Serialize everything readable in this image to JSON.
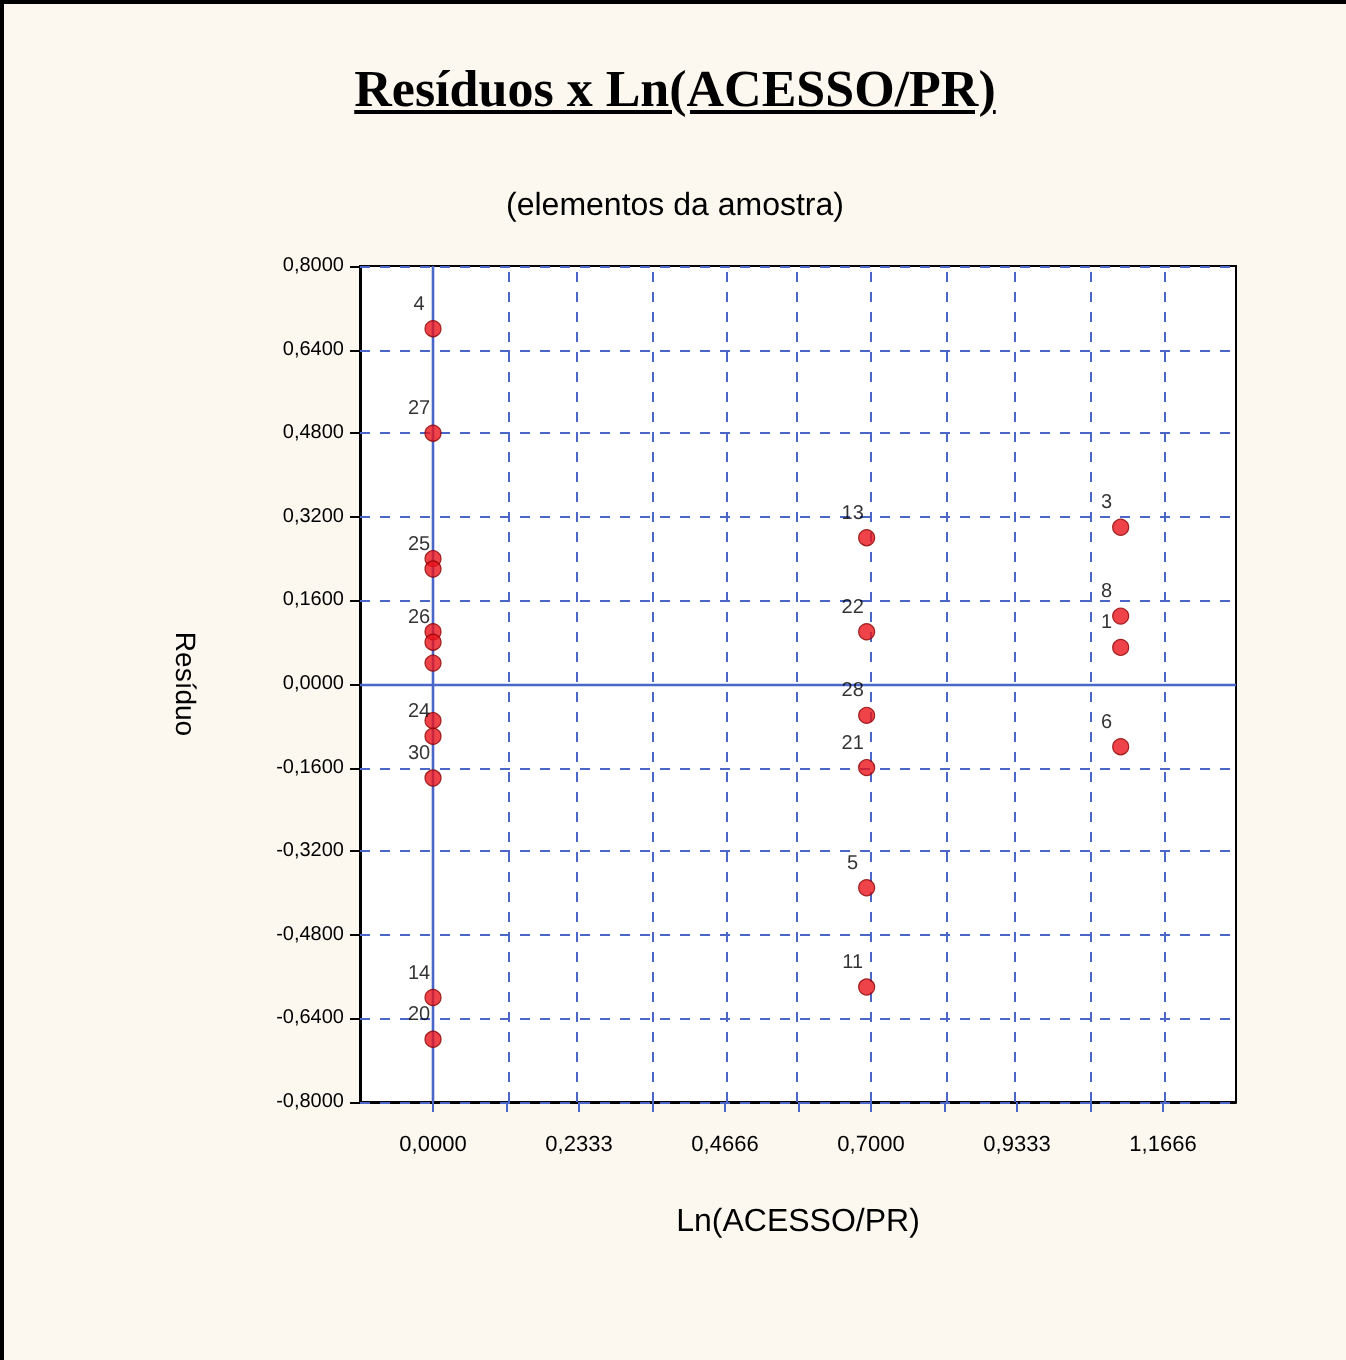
{
  "chart_data": {
    "type": "scatter",
    "title": "Resíduos x Ln(ACESSO/PR)",
    "subtitle": "(elementos da amostra)",
    "xlabel": "Ln(ACESSO/PR)",
    "ylabel": "Resíduo",
    "x": [
      0,
      0,
      0,
      0,
      0,
      0,
      0,
      0,
      0,
      0,
      0,
      0,
      0.693,
      0.693,
      0.693,
      0.693,
      0.693,
      0.693,
      1.099,
      1.099,
      1.099,
      1.099
    ],
    "values": [
      0.68,
      0.48,
      0.24,
      0.22,
      0.1,
      0.08,
      0.04,
      -0.07,
      -0.1,
      -0.18,
      -0.6,
      -0.68,
      0.28,
      0.1,
      -0.06,
      -0.16,
      -0.39,
      -0.58,
      0.3,
      0.13,
      0.07,
      -0.12
    ],
    "color": "#e8141c",
    "marker": "circle",
    "grid": true,
    "xlim": [
      -0.1167,
      1.2833
    ],
    "xticks": [
      {
        "value": 0,
        "label": "0,0000"
      },
      {
        "value": 0.1167,
        "label": null
      },
      {
        "value": 0.2333,
        "label": "0,2333"
      },
      {
        "value": 0.35,
        "label": null
      },
      {
        "value": 0.4666,
        "label": "0,4666"
      },
      {
        "value": 0.5833,
        "label": null
      },
      {
        "value": 0.7,
        "label": "0,7000"
      },
      {
        "value": 0.8167,
        "label": null
      },
      {
        "value": 0.9333,
        "label": "0,9333"
      },
      {
        "value": 1.05,
        "label": null
      },
      {
        "value": 1.1666,
        "label": "1,1666"
      }
    ],
    "ylim": [
      -0.8,
      0.8
    ],
    "yticks": [
      {
        "value": -0.8,
        "label": "-0,8000"
      },
      {
        "value": -0.64,
        "label": "-0,6400"
      },
      {
        "value": -0.48,
        "label": "-0,4800"
      },
      {
        "value": -0.32,
        "label": "-0,3200"
      },
      {
        "value": -0.16,
        "label": "-0,1600"
      },
      {
        "value": 0,
        "label": "0,0000"
      },
      {
        "value": 0.16,
        "label": "0,1600"
      },
      {
        "value": 0.32,
        "label": "0,3200"
      },
      {
        "value": 0.48,
        "label": "0,4800"
      },
      {
        "value": 0.64,
        "label": "0,6400"
      },
      {
        "value": 0.8,
        "label": "0,8000"
      }
    ],
    "annotations": [
      {
        "text": "4",
        "x": 0,
        "y": 0.68
      },
      {
        "text": "27",
        "x": 0,
        "y": 0.48
      },
      {
        "text": "25",
        "x": 0,
        "y": 0.22
      },
      {
        "text": "26",
        "x": 0,
        "y": 0.08
      },
      {
        "text": "24",
        "x": 0,
        "y": -0.1
      },
      {
        "text": "30",
        "x": 0,
        "y": -0.18
      },
      {
        "text": "14",
        "x": 0,
        "y": -0.6
      },
      {
        "text": "20",
        "x": 0,
        "y": -0.68
      },
      {
        "text": "13",
        "x": 0.693,
        "y": 0.28
      },
      {
        "text": "22",
        "x": 0.693,
        "y": 0.1
      },
      {
        "text": "28",
        "x": 0.693,
        "y": -0.06
      },
      {
        "text": "21",
        "x": 0.693,
        "y": -0.16
      },
      {
        "text": "5",
        "x": 0.693,
        "y": -0.39
      },
      {
        "text": "11",
        "x": 0.693,
        "y": -0.58
      },
      {
        "text": "3",
        "x": 1.099,
        "y": 0.3
      },
      {
        "text": "8",
        "x": 1.099,
        "y": 0.13
      },
      {
        "text": "1",
        "x": 1.099,
        "y": 0.07
      },
      {
        "text": "6",
        "x": 1.099,
        "y": -0.12
      }
    ]
  }
}
